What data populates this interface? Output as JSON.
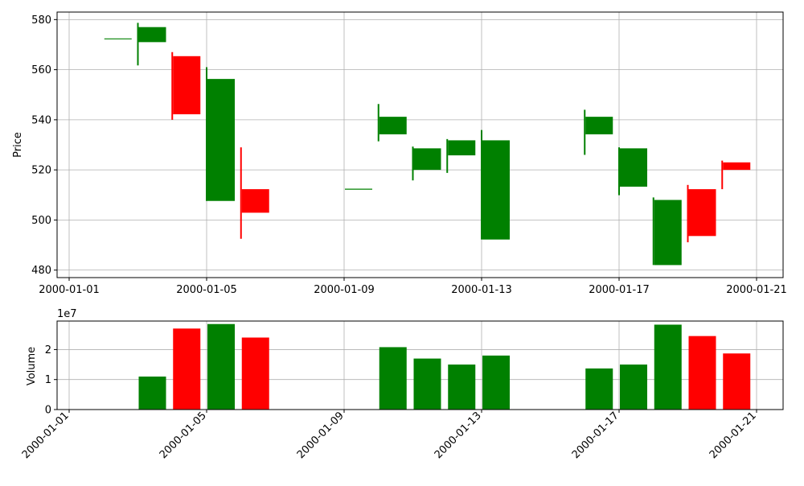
{
  "chart_data": [
    {
      "type": "candlestick",
      "ylabel": "Price",
      "ylim": [
        477,
        583
      ],
      "yticks": [
        480,
        500,
        520,
        540,
        560,
        580
      ],
      "grid": true,
      "up_color": "#008000",
      "down_color": "#ff0000",
      "xticks": [
        "2000-01-01",
        "2000-01-05",
        "2000-01-09",
        "2000-01-13",
        "2000-01-17",
        "2000-01-21"
      ],
      "candles": [
        {
          "date": "2000-01-02",
          "open": 572.3,
          "close": 572.3,
          "high": 572.3,
          "low": 572.3
        },
        {
          "date": "2000-01-03",
          "open": 571.0,
          "close": 577.0,
          "high": 578.7,
          "low": 561.7
        },
        {
          "date": "2000-01-04",
          "open": 565.4,
          "close": 542.2,
          "high": 567.0,
          "low": 540.0
        },
        {
          "date": "2000-01-05",
          "open": 507.6,
          "close": 556.3,
          "high": 561.0,
          "low": 507.6
        },
        {
          "date": "2000-01-06",
          "open": 512.3,
          "close": 502.9,
          "high": 529.0,
          "low": 492.5
        },
        {
          "date": "2000-01-09",
          "open": 512.3,
          "close": 512.3,
          "high": 512.3,
          "low": 512.3
        },
        {
          "date": "2000-01-10",
          "open": 534.2,
          "close": 541.2,
          "high": 546.3,
          "low": 531.4
        },
        {
          "date": "2000-01-11",
          "open": 520.0,
          "close": 528.6,
          "high": 529.3,
          "low": 515.8
        },
        {
          "date": "2000-01-12",
          "open": 525.8,
          "close": 531.8,
          "high": 532.3,
          "low": 518.8
        },
        {
          "date": "2000-01-13",
          "open": 492.2,
          "close": 531.8,
          "high": 535.9,
          "low": 492.2
        },
        {
          "date": "2000-01-16",
          "open": 534.2,
          "close": 541.2,
          "high": 544.0,
          "low": 526.0
        },
        {
          "date": "2000-01-17",
          "open": 513.3,
          "close": 528.6,
          "high": 529.0,
          "low": 509.9
        },
        {
          "date": "2000-01-18",
          "open": 482.0,
          "close": 508.0,
          "high": 509.0,
          "low": 482.0
        },
        {
          "date": "2000-01-19",
          "open": 512.3,
          "close": 493.6,
          "high": 514.0,
          "low": 491.1
        },
        {
          "date": "2000-01-20",
          "open": 523.0,
          "close": 520.0,
          "high": 523.7,
          "low": 512.3
        }
      ]
    },
    {
      "type": "bar",
      "ylabel": "Volume",
      "offset_label": "1e7",
      "ylim": [
        0,
        2.95
      ],
      "yticks": [
        0,
        1,
        2
      ],
      "grid": true,
      "xticks": [
        "2000-01-01",
        "2000-01-05",
        "2000-01-09",
        "2000-01-13",
        "2000-01-17",
        "2000-01-21"
      ],
      "bars": [
        {
          "date": "2000-01-03",
          "value": 1.1,
          "color": "#008000"
        },
        {
          "date": "2000-01-04",
          "value": 2.7,
          "color": "#ff0000"
        },
        {
          "date": "2000-01-05",
          "value": 2.85,
          "color": "#008000"
        },
        {
          "date": "2000-01-06",
          "value": 2.4,
          "color": "#ff0000"
        },
        {
          "date": "2000-01-10",
          "value": 2.08,
          "color": "#008000"
        },
        {
          "date": "2000-01-11",
          "value": 1.7,
          "color": "#008000"
        },
        {
          "date": "2000-01-12",
          "value": 1.5,
          "color": "#008000"
        },
        {
          "date": "2000-01-13",
          "value": 1.8,
          "color": "#008000"
        },
        {
          "date": "2000-01-16",
          "value": 1.37,
          "color": "#008000"
        },
        {
          "date": "2000-01-17",
          "value": 1.5,
          "color": "#008000"
        },
        {
          "date": "2000-01-18",
          "value": 2.83,
          "color": "#008000"
        },
        {
          "date": "2000-01-19",
          "value": 2.45,
          "color": "#ff0000"
        },
        {
          "date": "2000-01-20",
          "value": 1.87,
          "color": "#ff0000"
        }
      ]
    }
  ]
}
